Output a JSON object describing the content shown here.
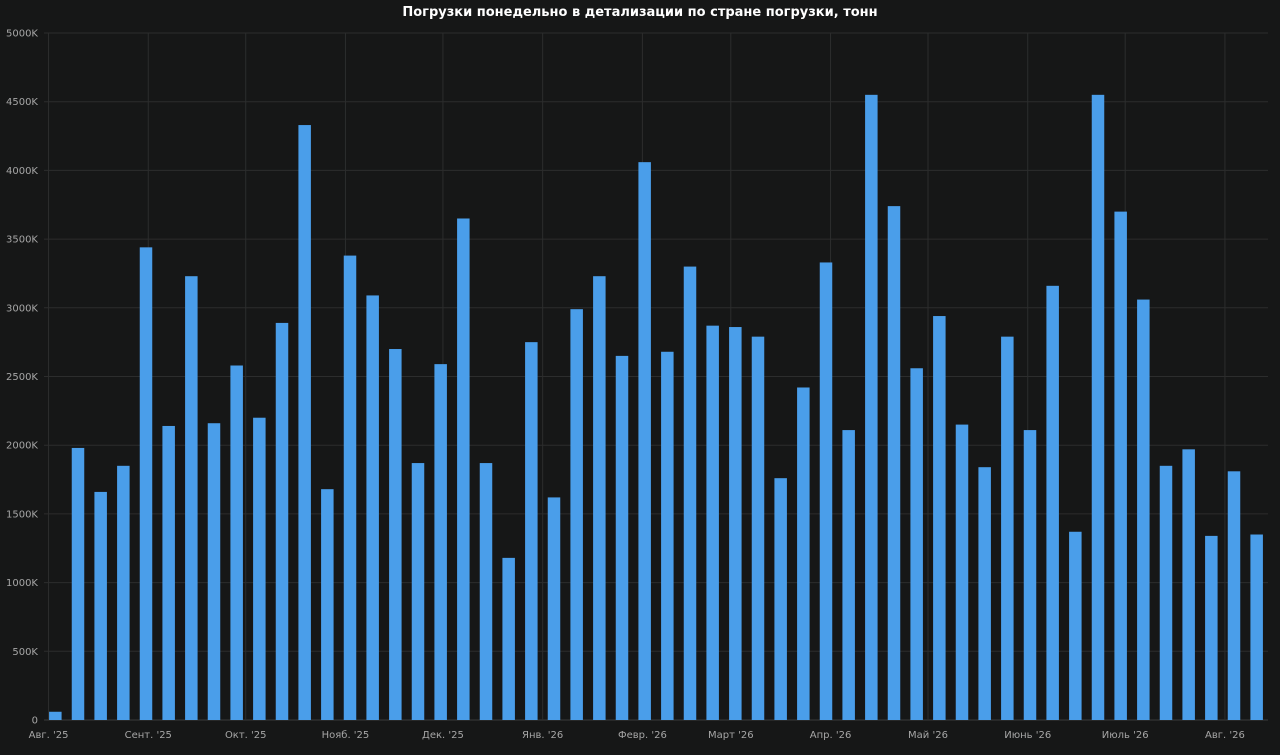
{
  "chart_data": {
    "type": "bar",
    "title": "Погрузки понедельно в детализации по стране погрузки, тонн",
    "xlabel": "",
    "ylabel": "",
    "ylim": [
      0,
      5000000
    ],
    "y_ticks": [
      {
        "value": 0,
        "label": "0"
      },
      {
        "value": 500000,
        "label": "500K"
      },
      {
        "value": 1000000,
        "label": "1000K"
      },
      {
        "value": 1500000,
        "label": "1500K"
      },
      {
        "value": 2000000,
        "label": "2000K"
      },
      {
        "value": 2500000,
        "label": "2500K"
      },
      {
        "value": 3000000,
        "label": "3000K"
      },
      {
        "value": 3500000,
        "label": "3500K"
      },
      {
        "value": 4000000,
        "label": "4000K"
      },
      {
        "value": 4500000,
        "label": "4500K"
      },
      {
        "value": 5000000,
        "label": "5000K"
      }
    ],
    "x_ticks": [
      {
        "week": 0.2,
        "label": "Авг. '25"
      },
      {
        "week": 4.6,
        "label": "Сент. '25"
      },
      {
        "week": 8.9,
        "label": "Окт. '25"
      },
      {
        "week": 13.3,
        "label": "Нояб. '25"
      },
      {
        "week": 17.6,
        "label": "Дек. '25"
      },
      {
        "week": 22.0,
        "label": "Янв. '26"
      },
      {
        "week": 26.4,
        "label": "Февр. '26"
      },
      {
        "week": 30.3,
        "label": "Март '26"
      },
      {
        "week": 34.7,
        "label": "Апр. '26"
      },
      {
        "week": 39.0,
        "label": "Май '26"
      },
      {
        "week": 43.4,
        "label": "Июнь '26"
      },
      {
        "week": 47.7,
        "label": "Июль '26"
      },
      {
        "week": 52.1,
        "label": "Авг. '26"
      }
    ],
    "grid": true,
    "bar_color": "#4a9eea",
    "values": [
      60000,
      1980000,
      1660000,
      1850000,
      3440000,
      2140000,
      3230000,
      2160000,
      2580000,
      2200000,
      2890000,
      4330000,
      1680000,
      3380000,
      3090000,
      2700000,
      1870000,
      2590000,
      3650000,
      1870000,
      1180000,
      2750000,
      1620000,
      2990000,
      3230000,
      2650000,
      4060000,
      2680000,
      3300000,
      2870000,
      2860000,
      2790000,
      1760000,
      2420000,
      3330000,
      2110000,
      4550000,
      3740000,
      2560000,
      2940000,
      2150000,
      1840000,
      2790000,
      2110000,
      3160000,
      1370000,
      4550000,
      3700000,
      3060000,
      1850000,
      1970000,
      1340000,
      1810000,
      1350000
    ]
  }
}
